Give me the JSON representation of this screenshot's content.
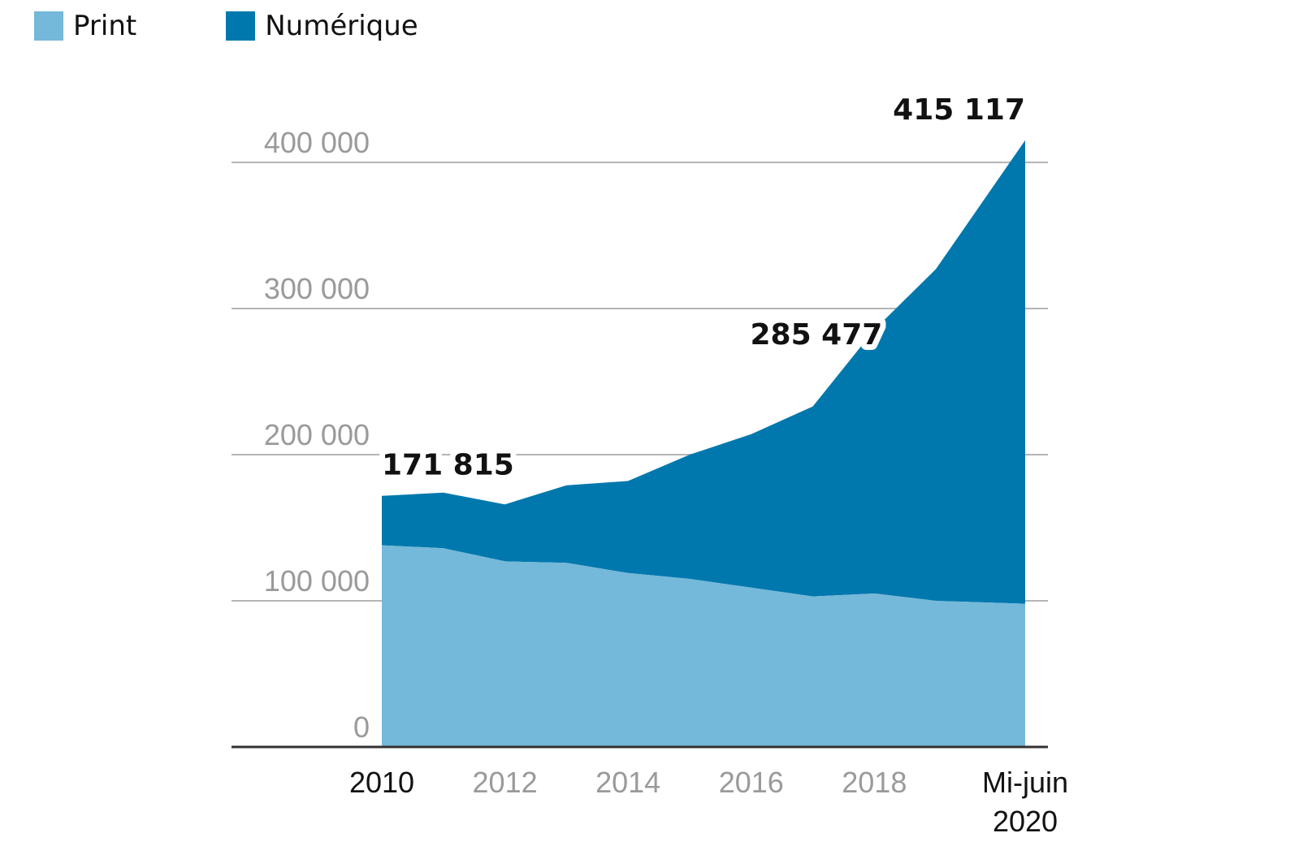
{
  "legend": {
    "print_label": "Print",
    "digital_label": "Numérique"
  },
  "colors": {
    "print": "#74b8da",
    "digital": "#0078ad",
    "grid": "#b5b5b5",
    "axis": "#333333"
  },
  "chart_data": {
    "type": "area",
    "stacked": true,
    "x": [
      2010,
      2011,
      2012,
      2013,
      2014,
      2015,
      2016,
      2017,
      2018,
      2019,
      2020.45
    ],
    "series": [
      {
        "name": "Print",
        "values": [
          138000,
          136000,
          127000,
          126000,
          119000,
          115000,
          109000,
          103000,
          105000,
          100000,
          98000
        ]
      },
      {
        "name": "Numérique",
        "values": [
          33815,
          38000,
          39000,
          53000,
          63000,
          85000,
          105000,
          130000,
          180477,
          227000,
          317117
        ]
      }
    ],
    "totals_labels": [
      {
        "x": 2010,
        "total": 171815,
        "text": "171 815"
      },
      {
        "x": 2018,
        "total": 285477,
        "text": "285 477"
      },
      {
        "x": 2020.45,
        "total": 415117,
        "text": "415 117"
      }
    ],
    "yticks": [
      {
        "value": 0,
        "label": "0"
      },
      {
        "value": 100000,
        "label": "100 000"
      },
      {
        "value": 200000,
        "label": "200 000"
      },
      {
        "value": 300000,
        "label": "300 000"
      },
      {
        "value": 400000,
        "label": "400 000"
      }
    ],
    "xticks": [
      {
        "value": 2010,
        "label": "2010",
        "dark": true
      },
      {
        "value": 2012,
        "label": "2012",
        "dark": false
      },
      {
        "value": 2014,
        "label": "2014",
        "dark": false
      },
      {
        "value": 2016,
        "label": "2016",
        "dark": false
      },
      {
        "value": 2018,
        "label": "2018",
        "dark": false
      },
      {
        "value": 2020.45,
        "label": "Mi-juin",
        "label2": "2020",
        "dark": true
      }
    ],
    "ylim": [
      0,
      415117
    ],
    "xlim": [
      2010,
      2020.45
    ],
    "grid": true,
    "legend_position": "top-left"
  }
}
